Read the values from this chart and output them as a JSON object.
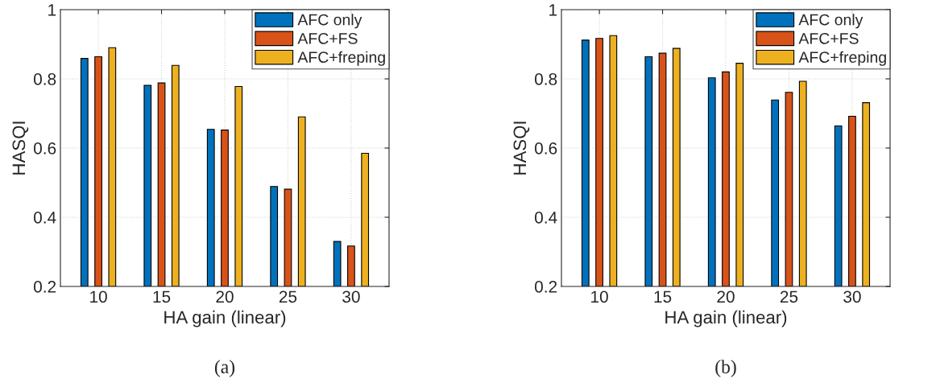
{
  "chart_data": [
    {
      "type": "bar",
      "categories": [
        "10",
        "15",
        "20",
        "25",
        "30"
      ],
      "xlabel": "HA gain (linear)",
      "ylabel": "HASQI",
      "ylim": [
        0.2,
        1
      ],
      "yticks": [
        0.2,
        0.4,
        0.6,
        0.8,
        1
      ],
      "grid": true,
      "legend": "top right",
      "annotations": [
        "(a)"
      ],
      "series": [
        {
          "name": "AFC only",
          "color": "#0072bd",
          "values": [
            0.859,
            0.781,
            0.654,
            0.489,
            0.33
          ]
        },
        {
          "name": "AFC+FS",
          "color": "#d95319",
          "values": [
            0.864,
            0.788,
            0.652,
            0.481,
            0.317
          ]
        },
        {
          "name": "AFC+freping",
          "color": "#edb120",
          "values": [
            0.89,
            0.839,
            0.778,
            0.69,
            0.585
          ]
        }
      ]
    },
    {
      "type": "bar",
      "categories": [
        "10",
        "15",
        "20",
        "25",
        "30"
      ],
      "xlabel": "HA gain (linear)",
      "ylabel": "HASQI",
      "ylim": [
        0.2,
        1
      ],
      "yticks": [
        0.2,
        0.4,
        0.6,
        0.8,
        1
      ],
      "grid": true,
      "legend": "top right",
      "annotations": [
        "(b)"
      ],
      "series": [
        {
          "name": "AFC only",
          "color": "#0072bd",
          "values": [
            0.912,
            0.864,
            0.803,
            0.739,
            0.664
          ]
        },
        {
          "name": "AFC+FS",
          "color": "#d95319",
          "values": [
            0.917,
            0.874,
            0.82,
            0.761,
            0.692
          ]
        },
        {
          "name": "AFC+freping",
          "color": "#edb120",
          "values": [
            0.925,
            0.888,
            0.845,
            0.793,
            0.731
          ]
        }
      ]
    }
  ]
}
